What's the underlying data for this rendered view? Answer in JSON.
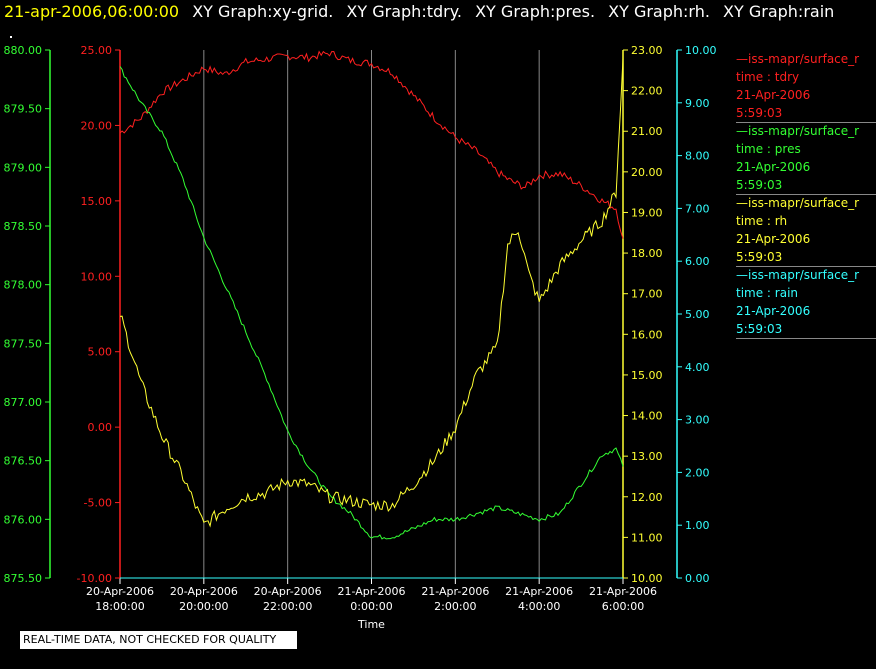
{
  "header": {
    "timestamp": "21-apr-2006,06:00:00",
    "graphs": [
      "XY Graph:xy-grid.",
      "XY Graph:tdry.",
      "XY Graph:pres.",
      "XY Graph:rh.",
      "XY Graph:rain"
    ]
  },
  "legend": [
    {
      "name": "—iss-mapr/surface_r",
      "var": "time : tdry",
      "date": "21-Apr-2006",
      "time": "5:59:03",
      "color": "#ff2020"
    },
    {
      "name": "—iss-mapr/surface_r",
      "var": "time : pres",
      "date": "21-Apr-2006",
      "time": "5:59:03",
      "color": "#33ff33"
    },
    {
      "name": "—iss-mapr/surface_r",
      "var": "time : rh",
      "date": "21-Apr-2006",
      "time": "5:59:03",
      "color": "#ffff33"
    },
    {
      "name": "—iss-mapr/surface_r",
      "var": "time : rain",
      "date": "21-Apr-2006",
      "time": "5:59:03",
      "color": "#33ffff"
    }
  ],
  "footer": {
    "quality_note": "REAL-TIME DATA, NOT CHECKED FOR QUALITY"
  },
  "chart_data": {
    "type": "line",
    "xlabel": "Time",
    "x_ticks": [
      [
        "20-Apr-2006",
        "18:00:00"
      ],
      [
        "20-Apr-2006",
        "20:00:00"
      ],
      [
        "20-Apr-2006",
        "22:00:00"
      ],
      [
        "21-Apr-2006",
        "0:00:00"
      ],
      [
        "21-Apr-2006",
        "2:00:00"
      ],
      [
        "21-Apr-2006",
        "4:00:00"
      ],
      [
        "21-Apr-2006",
        "6:00:00"
      ]
    ],
    "xlim": [
      "2006-04-20 18:00",
      "2006-04-21 06:00"
    ],
    "grid_x": true,
    "axes": {
      "pres": {
        "color": "#33ff33",
        "ylim": [
          875.5,
          880.0
        ],
        "ticks": [
          "875.50",
          "876.00",
          "876.50",
          "877.00",
          "877.50",
          "878.00",
          "878.50",
          "879.00",
          "879.50",
          "880.00"
        ]
      },
      "tdry": {
        "color": "#ff2020",
        "ylim": [
          -10,
          25
        ],
        "ticks": [
          "-10.00",
          "-5.00",
          "0.00",
          "5.00",
          "10.00",
          "15.00",
          "20.00",
          "25.00"
        ]
      },
      "rh": {
        "color": "#ffff33",
        "ylim": [
          10,
          23
        ],
        "ticks": [
          "10.00",
          "11.00",
          "12.00",
          "13.00",
          "14.00",
          "15.00",
          "16.00",
          "17.00",
          "18.00",
          "19.00",
          "20.00",
          "21.00",
          "22.00",
          "23.00"
        ]
      },
      "rain": {
        "color": "#33ffff",
        "ylim": [
          0,
          10
        ],
        "ticks": [
          "0.00",
          "1.00",
          "2.00",
          "3.00",
          "4.00",
          "5.00",
          "6.00",
          "7.00",
          "8.00",
          "9.00",
          "10.00"
        ]
      }
    },
    "series": [
      {
        "axis": "tdry",
        "x": [
          "2006-04-20 18:00",
          "2006-04-20 18:30",
          "2006-04-20 19:00",
          "2006-04-20 19:30",
          "2006-04-20 20:00",
          "2006-04-20 20:30",
          "2006-04-20 21:00",
          "2006-04-20 21:30",
          "2006-04-20 22:00",
          "2006-04-20 22:30",
          "2006-04-20 23:00",
          "2006-04-20 23:30",
          "2006-04-21 00:00",
          "2006-04-21 00:30",
          "2006-04-21 01:00",
          "2006-04-21 01:30",
          "2006-04-21 02:00",
          "2006-04-21 02:30",
          "2006-04-21 03:00",
          "2006-04-21 03:20",
          "2006-04-21 03:40",
          "2006-04-21 04:00",
          "2006-04-21 04:30",
          "2006-04-21 05:00",
          "2006-04-21 05:30",
          "2006-04-21 05:50",
          "2006-04-21 06:00"
        ],
        "y": [
          19.5,
          20.5,
          22.2,
          23.0,
          23.8,
          23.4,
          24.2,
          24.4,
          24.6,
          24.5,
          24.8,
          24.3,
          24.1,
          23.5,
          22.0,
          20.5,
          19.2,
          18.3,
          16.9,
          16.3,
          15.9,
          16.7,
          16.8,
          16.0,
          15.0,
          14.5,
          12.5
        ]
      },
      {
        "axis": "pres",
        "x": [
          "2006-04-20 18:00",
          "2006-04-20 18:30",
          "2006-04-20 19:00",
          "2006-04-20 19:30",
          "2006-04-20 20:00",
          "2006-04-20 20:30",
          "2006-04-20 21:00",
          "2006-04-20 21:30",
          "2006-04-20 22:00",
          "2006-04-20 22:30",
          "2006-04-20 23:00",
          "2006-04-20 23:30",
          "2006-04-21 00:00",
          "2006-04-21 00:30",
          "2006-04-21 01:00",
          "2006-04-21 01:30",
          "2006-04-21 02:00",
          "2006-04-21 02:30",
          "2006-04-21 03:00",
          "2006-04-21 03:30",
          "2006-04-21 04:00",
          "2006-04-21 04:30",
          "2006-04-21 05:00",
          "2006-04-21 05:30",
          "2006-04-21 05:50",
          "2006-04-21 06:00"
        ],
        "y": [
          879.85,
          879.55,
          879.3,
          878.9,
          878.4,
          878.0,
          877.6,
          877.2,
          876.75,
          876.45,
          876.2,
          876.05,
          875.85,
          875.85,
          875.92,
          876.0,
          876.0,
          876.05,
          876.1,
          876.05,
          876.0,
          876.05,
          876.3,
          876.55,
          876.6,
          876.45
        ]
      },
      {
        "axis": "rh",
        "x": [
          "2006-04-20 18:00",
          "2006-04-20 18:30",
          "2006-04-20 19:00",
          "2006-04-20 19:30",
          "2006-04-20 20:00",
          "2006-04-20 20:30",
          "2006-04-20 21:00",
          "2006-04-20 21:30",
          "2006-04-20 22:00",
          "2006-04-20 22:30",
          "2006-04-20 23:00",
          "2006-04-20 23:30",
          "2006-04-21 00:00",
          "2006-04-21 00:30",
          "2006-04-21 01:00",
          "2006-04-21 01:30",
          "2006-04-21 02:00",
          "2006-04-21 02:30",
          "2006-04-21 03:00",
          "2006-04-21 03:15",
          "2006-04-21 03:30",
          "2006-04-21 03:45",
          "2006-04-21 04:00",
          "2006-04-21 04:30",
          "2006-04-21 05:00",
          "2006-04-21 05:30",
          "2006-04-21 05:50",
          "2006-04-21 06:00"
        ],
        "y": [
          16.5,
          14.8,
          13.5,
          12.5,
          11.3,
          11.7,
          12.0,
          12.1,
          12.4,
          12.3,
          12.0,
          11.9,
          11.8,
          11.8,
          12.3,
          12.9,
          13.7,
          15.0,
          15.7,
          18.2,
          18.6,
          17.5,
          16.8,
          17.7,
          18.3,
          18.8,
          19.5,
          22.8
        ]
      },
      {
        "axis": "rain",
        "x": [
          "2006-04-20 18:00",
          "2006-04-21 06:00"
        ],
        "y": [
          0.0,
          0.0
        ]
      }
    ]
  }
}
